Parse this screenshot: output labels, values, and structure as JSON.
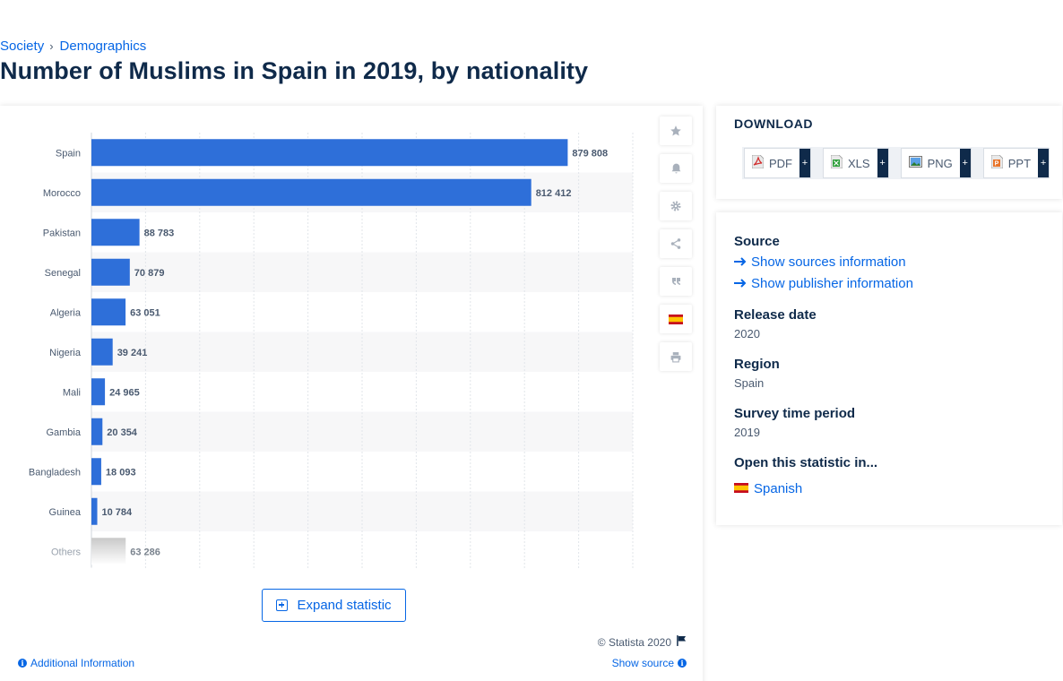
{
  "breadcrumb": {
    "parent": "Society",
    "current": "Demographics"
  },
  "page_title": "Number of Muslims in Spain in 2019, by nationality",
  "colors": {
    "bar": "#2e6fd9",
    "bar_others_top": "#c9c9c9",
    "accent": "#0666e5"
  },
  "chart_data": {
    "type": "bar",
    "orientation": "horizontal",
    "categories": [
      "Spain",
      "Morocco",
      "Pakistan",
      "Senegal",
      "Algeria",
      "Nigeria",
      "Mali",
      "Gambia",
      "Bangladesh",
      "Guinea",
      "Others"
    ],
    "values": [
      879808,
      812412,
      88783,
      70879,
      63051,
      39241,
      24965,
      20354,
      18093,
      10784,
      63286
    ],
    "value_labels": [
      "879 808",
      "812 412",
      "88 783",
      "70 879",
      "63 051",
      "39 241",
      "24 965",
      "20 354",
      "18 093",
      "10 784",
      "63 286"
    ],
    "title": "",
    "xlabel": "",
    "ylabel": "",
    "xlim": [
      0,
      1000000
    ],
    "grid": true,
    "legend": "none"
  },
  "toolbar": {
    "icons": [
      "star-icon",
      "bell-icon",
      "gear-icon",
      "share-icon",
      "quote-icon",
      "spain-flag-icon",
      "print-icon"
    ]
  },
  "expand_label": "Expand statistic",
  "copyright": "© Statista 2020",
  "additional_info": "Additional Information",
  "show_source": "Show source",
  "download": {
    "title": "DOWNLOAD",
    "buttons": [
      {
        "label": "PDF",
        "plus": "+"
      },
      {
        "label": "XLS",
        "plus": "+"
      },
      {
        "label": "PNG",
        "plus": "+"
      },
      {
        "label": "PPT",
        "plus": "+"
      }
    ]
  },
  "info": {
    "source_label": "Source",
    "show_sources": "Show sources information",
    "show_publisher": "Show publisher information",
    "release_label": "Release date",
    "release_value": "2020",
    "region_label": "Region",
    "region_value": "Spain",
    "period_label": "Survey time period",
    "period_value": "2019",
    "open_label": "Open this statistic in...",
    "open_language": "Spanish"
  }
}
